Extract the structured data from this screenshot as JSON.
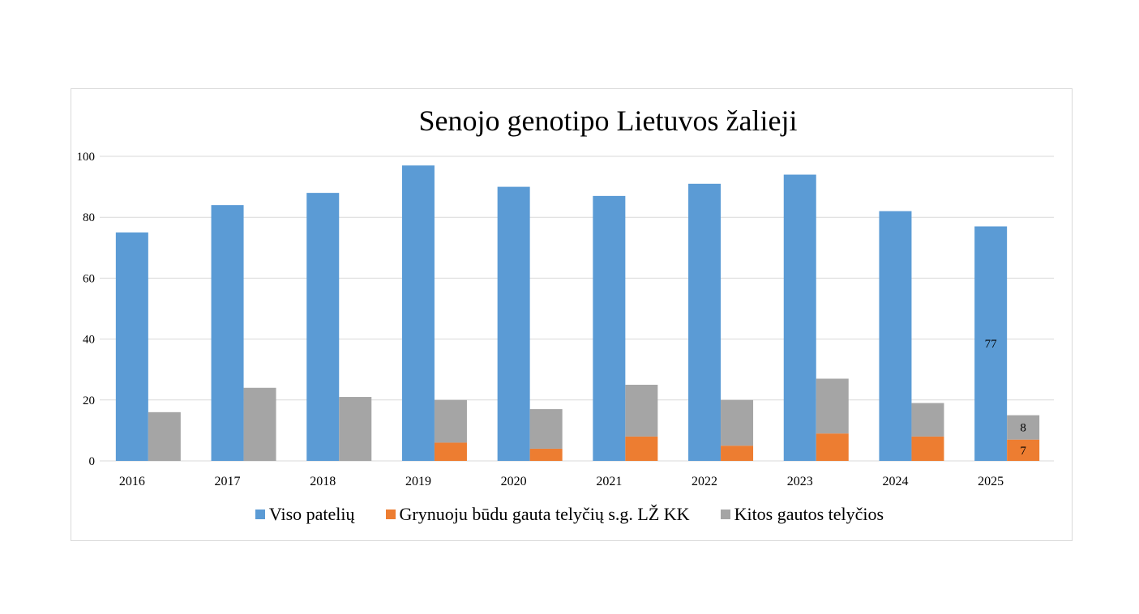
{
  "chart_data": {
    "type": "bar",
    "title": "Senojo genotipo Lietuvos žalieji",
    "categories": [
      "2016",
      "2017",
      "2018",
      "2019",
      "2020",
      "2021",
      "2022",
      "2023",
      "2024",
      "2025"
    ],
    "series": [
      {
        "name": "Viso patelių",
        "color": "#5b9bd5",
        "stack": "a",
        "values": [
          75,
          84,
          88,
          97,
          90,
          87,
          91,
          94,
          82,
          77
        ]
      },
      {
        "name": "Grynuoju būdu gauta telyčių s.g. LŽ KK",
        "color": "#ed7d31",
        "stack": "b",
        "values": [
          0,
          0,
          0,
          6,
          4,
          8,
          5,
          9,
          8,
          7
        ]
      },
      {
        "name": "Kitos gautos telyčios",
        "color": "#a5a5a5",
        "stack": "b",
        "values": [
          16,
          24,
          21,
          14,
          13,
          17,
          15,
          18,
          11,
          8
        ]
      }
    ],
    "data_labels": [
      {
        "series": 0,
        "index": 9,
        "text": "77"
      },
      {
        "series": 1,
        "index": 9,
        "text": "7"
      },
      {
        "series": 2,
        "index": 9,
        "text": "8"
      }
    ],
    "ylim": [
      0,
      100
    ],
    "yticks": [
      0,
      20,
      40,
      60,
      80,
      100
    ],
    "grid": true,
    "legend": "bottom"
  }
}
